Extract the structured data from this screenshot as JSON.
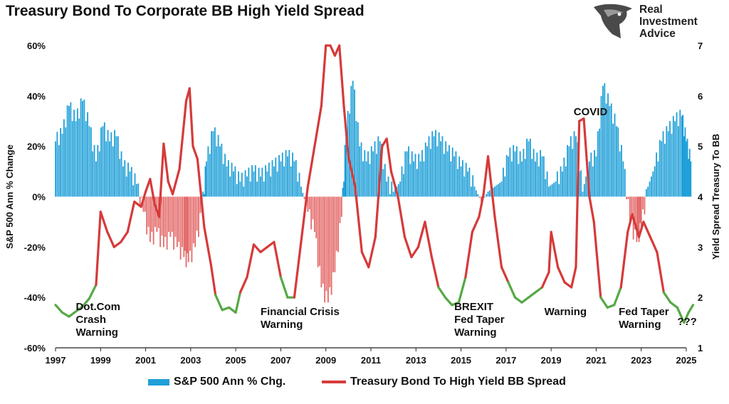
{
  "title": "Treasury Bond To Corporate BB High Yield Spread",
  "logo": {
    "line1": "Real",
    "line2": "Investment",
    "line3": "Advice",
    "icon": "eagle-head-icon"
  },
  "colors": {
    "bars": "#1e9fd8",
    "line_red": "#d63a3a",
    "line_green": "#55a945",
    "axis": "#222222"
  },
  "legend": {
    "bars_label": "S&P 500 Ann % Chg.",
    "line_label": "Treasury Bond To High Yield BB Spread"
  },
  "chart_data": {
    "type": "bar+line",
    "left_axis": {
      "label": "S&P 500 Ann % Change",
      "ylim": [
        -60,
        60
      ],
      "ticks": [
        "-60%",
        "-40%",
        "-20%",
        "0%",
        "20%",
        "40%",
        "60%"
      ]
    },
    "right_axis": {
      "label": "Yield Spread Treasury To BB",
      "ylim": [
        1,
        7
      ],
      "ticks": [
        "1",
        "2",
        "3",
        "4",
        "5",
        "6",
        "7"
      ]
    },
    "x_axis": {
      "range": [
        1997,
        2025
      ],
      "ticks": [
        "1997",
        "1999",
        "2001",
        "2003",
        "2005",
        "2007",
        "2009",
        "2011",
        "2013",
        "2015",
        "2017",
        "2019",
        "2021",
        "2023",
        "2025"
      ]
    },
    "bars": {
      "name": "S&P 500 Ann % Chg.",
      "points": [
        [
          1997.0,
          22
        ],
        [
          1997.3,
          25
        ],
        [
          1997.6,
          36
        ],
        [
          1997.9,
          30
        ],
        [
          1998.2,
          38
        ],
        [
          1998.5,
          28
        ],
        [
          1998.8,
          14
        ],
        [
          1999.1,
          28
        ],
        [
          1999.4,
          22
        ],
        [
          1999.7,
          24
        ],
        [
          2000.0,
          12
        ],
        [
          2000.3,
          10
        ],
        [
          2000.6,
          5
        ],
        [
          2000.9,
          -6
        ],
        [
          2001.2,
          -18
        ],
        [
          2001.5,
          -14
        ],
        [
          2001.8,
          -20
        ],
        [
          2002.1,
          -16
        ],
        [
          2002.4,
          -20
        ],
        [
          2002.7,
          -24
        ],
        [
          2002.9,
          -26
        ],
        [
          2003.2,
          -20
        ],
        [
          2003.5,
          -6
        ],
        [
          2003.7,
          14
        ],
        [
          2004.0,
          26
        ],
        [
          2004.3,
          20
        ],
        [
          2004.6,
          12
        ],
        [
          2004.9,
          10
        ],
        [
          2005.2,
          6
        ],
        [
          2005.5,
          8
        ],
        [
          2005.8,
          10
        ],
        [
          2006.1,
          8
        ],
        [
          2006.4,
          10
        ],
        [
          2006.7,
          12
        ],
        [
          2007.0,
          14
        ],
        [
          2007.3,
          16
        ],
        [
          2007.6,
          14
        ],
        [
          2007.9,
          4
        ],
        [
          2008.2,
          -6
        ],
        [
          2008.5,
          -14
        ],
        [
          2008.8,
          -36
        ],
        [
          2009.1,
          -42
        ],
        [
          2009.4,
          -30
        ],
        [
          2009.7,
          -8
        ],
        [
          2009.9,
          26
        ],
        [
          2010.2,
          46
        ],
        [
          2010.5,
          20
        ],
        [
          2010.8,
          14
        ],
        [
          2011.1,
          18
        ],
        [
          2011.4,
          22
        ],
        [
          2011.7,
          6
        ],
        [
          2012.0,
          2
        ],
        [
          2012.3,
          6
        ],
        [
          2012.6,
          18
        ],
        [
          2012.9,
          14
        ],
        [
          2013.2,
          14
        ],
        [
          2013.5,
          20
        ],
        [
          2013.8,
          24
        ],
        [
          2014.1,
          22
        ],
        [
          2014.4,
          18
        ],
        [
          2014.7,
          16
        ],
        [
          2015.0,
          12
        ],
        [
          2015.3,
          10
        ],
        [
          2015.6,
          4
        ],
        [
          2015.9,
          -2
        ],
        [
          2016.2,
          2
        ],
        [
          2016.5,
          4
        ],
        [
          2016.8,
          6
        ],
        [
          2017.1,
          16
        ],
        [
          2017.4,
          18
        ],
        [
          2017.7,
          14
        ],
        [
          2018.0,
          22
        ],
        [
          2018.3,
          14
        ],
        [
          2018.6,
          16
        ],
        [
          2018.9,
          4
        ],
        [
          2019.2,
          6
        ],
        [
          2019.5,
          10
        ],
        [
          2019.8,
          20
        ],
        [
          2020.1,
          24
        ],
        [
          2020.4,
          2
        ],
        [
          2020.7,
          14
        ],
        [
          2021.0,
          16
        ],
        [
          2021.3,
          44
        ],
        [
          2021.6,
          36
        ],
        [
          2021.9,
          28
        ],
        [
          2022.2,
          14
        ],
        [
          2022.5,
          -10
        ],
        [
          2022.8,
          -18
        ],
        [
          2023.0,
          -12
        ],
        [
          2023.3,
          4
        ],
        [
          2023.6,
          12
        ],
        [
          2023.9,
          22
        ],
        [
          2024.2,
          26
        ],
        [
          2024.5,
          30
        ],
        [
          2024.8,
          32
        ],
        [
          2025.0,
          22
        ],
        [
          2025.2,
          14
        ]
      ]
    },
    "line": {
      "name": "Treasury Bond To High Yield BB Spread",
      "points": [
        [
          1997.0,
          1.85
        ],
        [
          1997.3,
          1.7
        ],
        [
          1997.6,
          1.62
        ],
        [
          1997.9,
          1.72
        ],
        [
          1998.2,
          1.82
        ],
        [
          1998.5,
          1.98
        ],
        [
          1998.8,
          2.25
        ],
        [
          1999.0,
          3.7
        ],
        [
          1999.3,
          3.3
        ],
        [
          1999.6,
          3.0
        ],
        [
          1999.9,
          3.1
        ],
        [
          2000.2,
          3.3
        ],
        [
          2000.5,
          3.9
        ],
        [
          2000.8,
          3.8
        ],
        [
          2001.0,
          4.1
        ],
        [
          2001.2,
          4.35
        ],
        [
          2001.4,
          3.85
        ],
        [
          2001.6,
          3.6
        ],
        [
          2001.8,
          5.05
        ],
        [
          2002.0,
          4.3
        ],
        [
          2002.2,
          4.05
        ],
        [
          2002.5,
          4.55
        ],
        [
          2002.8,
          5.9
        ],
        [
          2002.95,
          6.15
        ],
        [
          2003.1,
          5.0
        ],
        [
          2003.3,
          4.75
        ],
        [
          2003.6,
          3.4
        ],
        [
          2003.9,
          2.65
        ],
        [
          2004.1,
          2.05
        ],
        [
          2004.4,
          1.75
        ],
        [
          2004.7,
          1.8
        ],
        [
          2005.0,
          1.7
        ],
        [
          2005.2,
          2.1
        ],
        [
          2005.5,
          2.4
        ],
        [
          2005.8,
          3.05
        ],
        [
          2006.1,
          2.9
        ],
        [
          2006.4,
          3.0
        ],
        [
          2006.7,
          3.1
        ],
        [
          2007.0,
          2.4
        ],
        [
          2007.3,
          2.0
        ],
        [
          2007.6,
          2.0
        ],
        [
          2007.9,
          3.1
        ],
        [
          2008.2,
          4.2
        ],
        [
          2008.5,
          5.0
        ],
        [
          2008.8,
          5.8
        ],
        [
          2009.0,
          7.4
        ],
        [
          2009.2,
          7.2
        ],
        [
          2009.4,
          6.8
        ],
        [
          2009.6,
          7.3
        ],
        [
          2009.8,
          5.8
        ],
        [
          2010.0,
          4.8
        ],
        [
          2010.3,
          4.2
        ],
        [
          2010.6,
          2.9
        ],
        [
          2010.9,
          2.6
        ],
        [
          2011.2,
          3.2
        ],
        [
          2011.5,
          5.0
        ],
        [
          2011.7,
          5.15
        ],
        [
          2011.9,
          4.5
        ],
        [
          2012.2,
          4.0
        ],
        [
          2012.5,
          3.2
        ],
        [
          2012.8,
          2.8
        ],
        [
          2013.1,
          3.0
        ],
        [
          2013.4,
          3.5
        ],
        [
          2013.7,
          2.8
        ],
        [
          2014.0,
          2.2
        ],
        [
          2014.3,
          2.0
        ],
        [
          2014.6,
          1.85
        ],
        [
          2014.9,
          1.9
        ],
        [
          2015.2,
          2.4
        ],
        [
          2015.5,
          3.3
        ],
        [
          2015.8,
          3.6
        ],
        [
          2016.0,
          4.05
        ],
        [
          2016.2,
          4.8
        ],
        [
          2016.5,
          3.6
        ],
        [
          2016.8,
          2.6
        ],
        [
          2017.1,
          2.3
        ],
        [
          2017.4,
          2.0
        ],
        [
          2017.7,
          1.9
        ],
        [
          2018.0,
          2.0
        ],
        [
          2018.3,
          2.1
        ],
        [
          2018.6,
          2.2
        ],
        [
          2018.9,
          2.5
        ],
        [
          2019.0,
          3.3
        ],
        [
          2019.3,
          2.6
        ],
        [
          2019.6,
          2.3
        ],
        [
          2019.9,
          2.2
        ],
        [
          2020.1,
          2.6
        ],
        [
          2020.25,
          5.5
        ],
        [
          2020.45,
          5.55
        ],
        [
          2020.7,
          4.0
        ],
        [
          2020.9,
          3.5
        ],
        [
          2021.2,
          2.0
        ],
        [
          2021.5,
          1.8
        ],
        [
          2021.8,
          1.85
        ],
        [
          2022.1,
          2.2
        ],
        [
          2022.4,
          3.3
        ],
        [
          2022.6,
          3.65
        ],
        [
          2022.9,
          3.2
        ],
        [
          2023.1,
          3.5
        ],
        [
          2023.4,
          3.2
        ],
        [
          2023.7,
          2.9
        ],
        [
          2024.0,
          2.1
        ],
        [
          2024.3,
          1.9
        ],
        [
          2024.6,
          1.8
        ],
        [
          2024.9,
          1.5
        ],
        [
          2025.1,
          1.7
        ],
        [
          2025.3,
          1.85
        ]
      ],
      "threshold": 2.25
    },
    "annotations": [
      {
        "x": 1997.9,
        "y": 1.75,
        "lines": [
          "Dot.Com",
          "Crash",
          "Warning"
        ]
      },
      {
        "x": 2006.1,
        "y": 1.65,
        "lines": [
          "Financial Crisis",
          "Warning"
        ]
      },
      {
        "x": 2014.7,
        "y": 1.75,
        "lines": [
          "BREXIT",
          "Fed Taper",
          "Warning"
        ]
      },
      {
        "x": 2018.7,
        "y": 1.65,
        "lines": [
          "Warning"
        ]
      },
      {
        "x": 2020.0,
        "y": 5.62,
        "lines": [
          "COVID"
        ]
      },
      {
        "x": 2022.0,
        "y": 1.65,
        "lines": [
          "Fed Taper",
          "Warning"
        ]
      },
      {
        "x": 2024.6,
        "y": 1.45,
        "lines": [
          "???"
        ]
      }
    ]
  }
}
